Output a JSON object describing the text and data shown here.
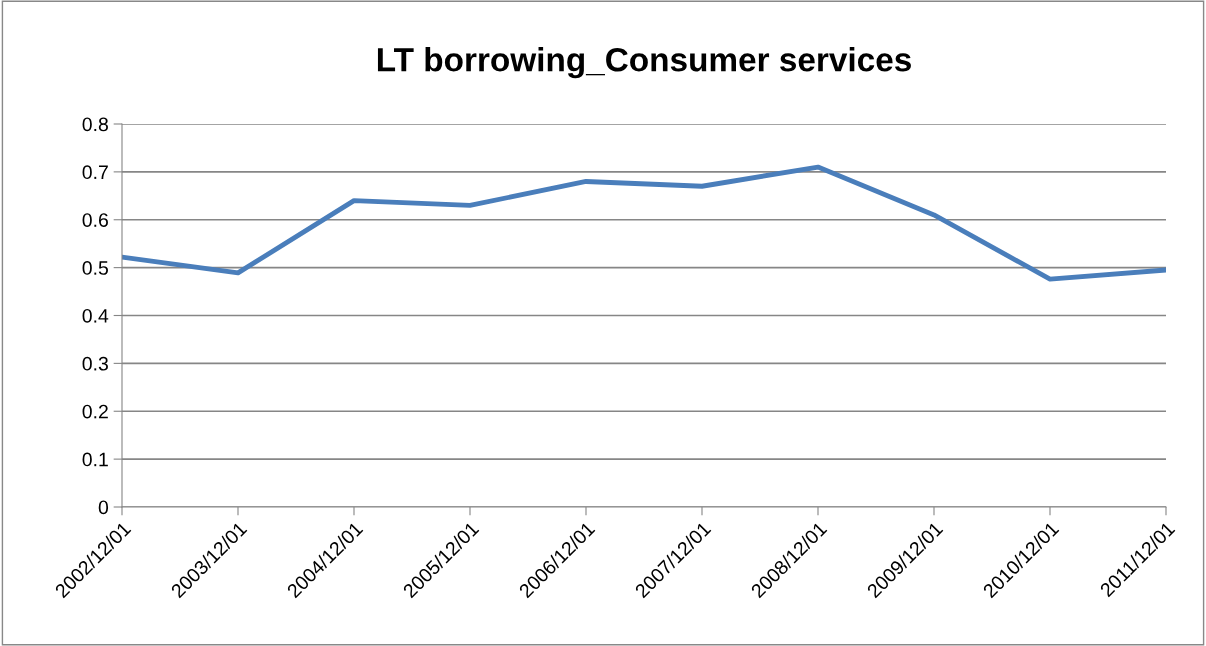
{
  "chart_data": {
    "type": "line",
    "title": "LT borrowing_Consumer services",
    "categories": [
      "2002/12/01",
      "2003/12/01",
      "2004/12/01",
      "2005/12/01",
      "2006/12/01",
      "2007/12/01",
      "2008/12/01",
      "2009/12/01",
      "2010/12/01",
      "2011/12/01"
    ],
    "series": [
      {
        "color": "#4a7ebb",
        "values": [
          0.522,
          0.489,
          0.64,
          0.63,
          0.68,
          0.67,
          0.71,
          0.61,
          0.476,
          0.495
        ]
      }
    ],
    "ylim": [
      0,
      0.8
    ],
    "yticks": [
      {
        "value": 0,
        "label": "0"
      },
      0.1,
      0.2,
      0.3,
      0.4,
      0.5,
      0.6,
      0.7,
      0.8
    ],
    "grid": "y",
    "legend": false,
    "marker": "none",
    "line_style": "solid"
  }
}
